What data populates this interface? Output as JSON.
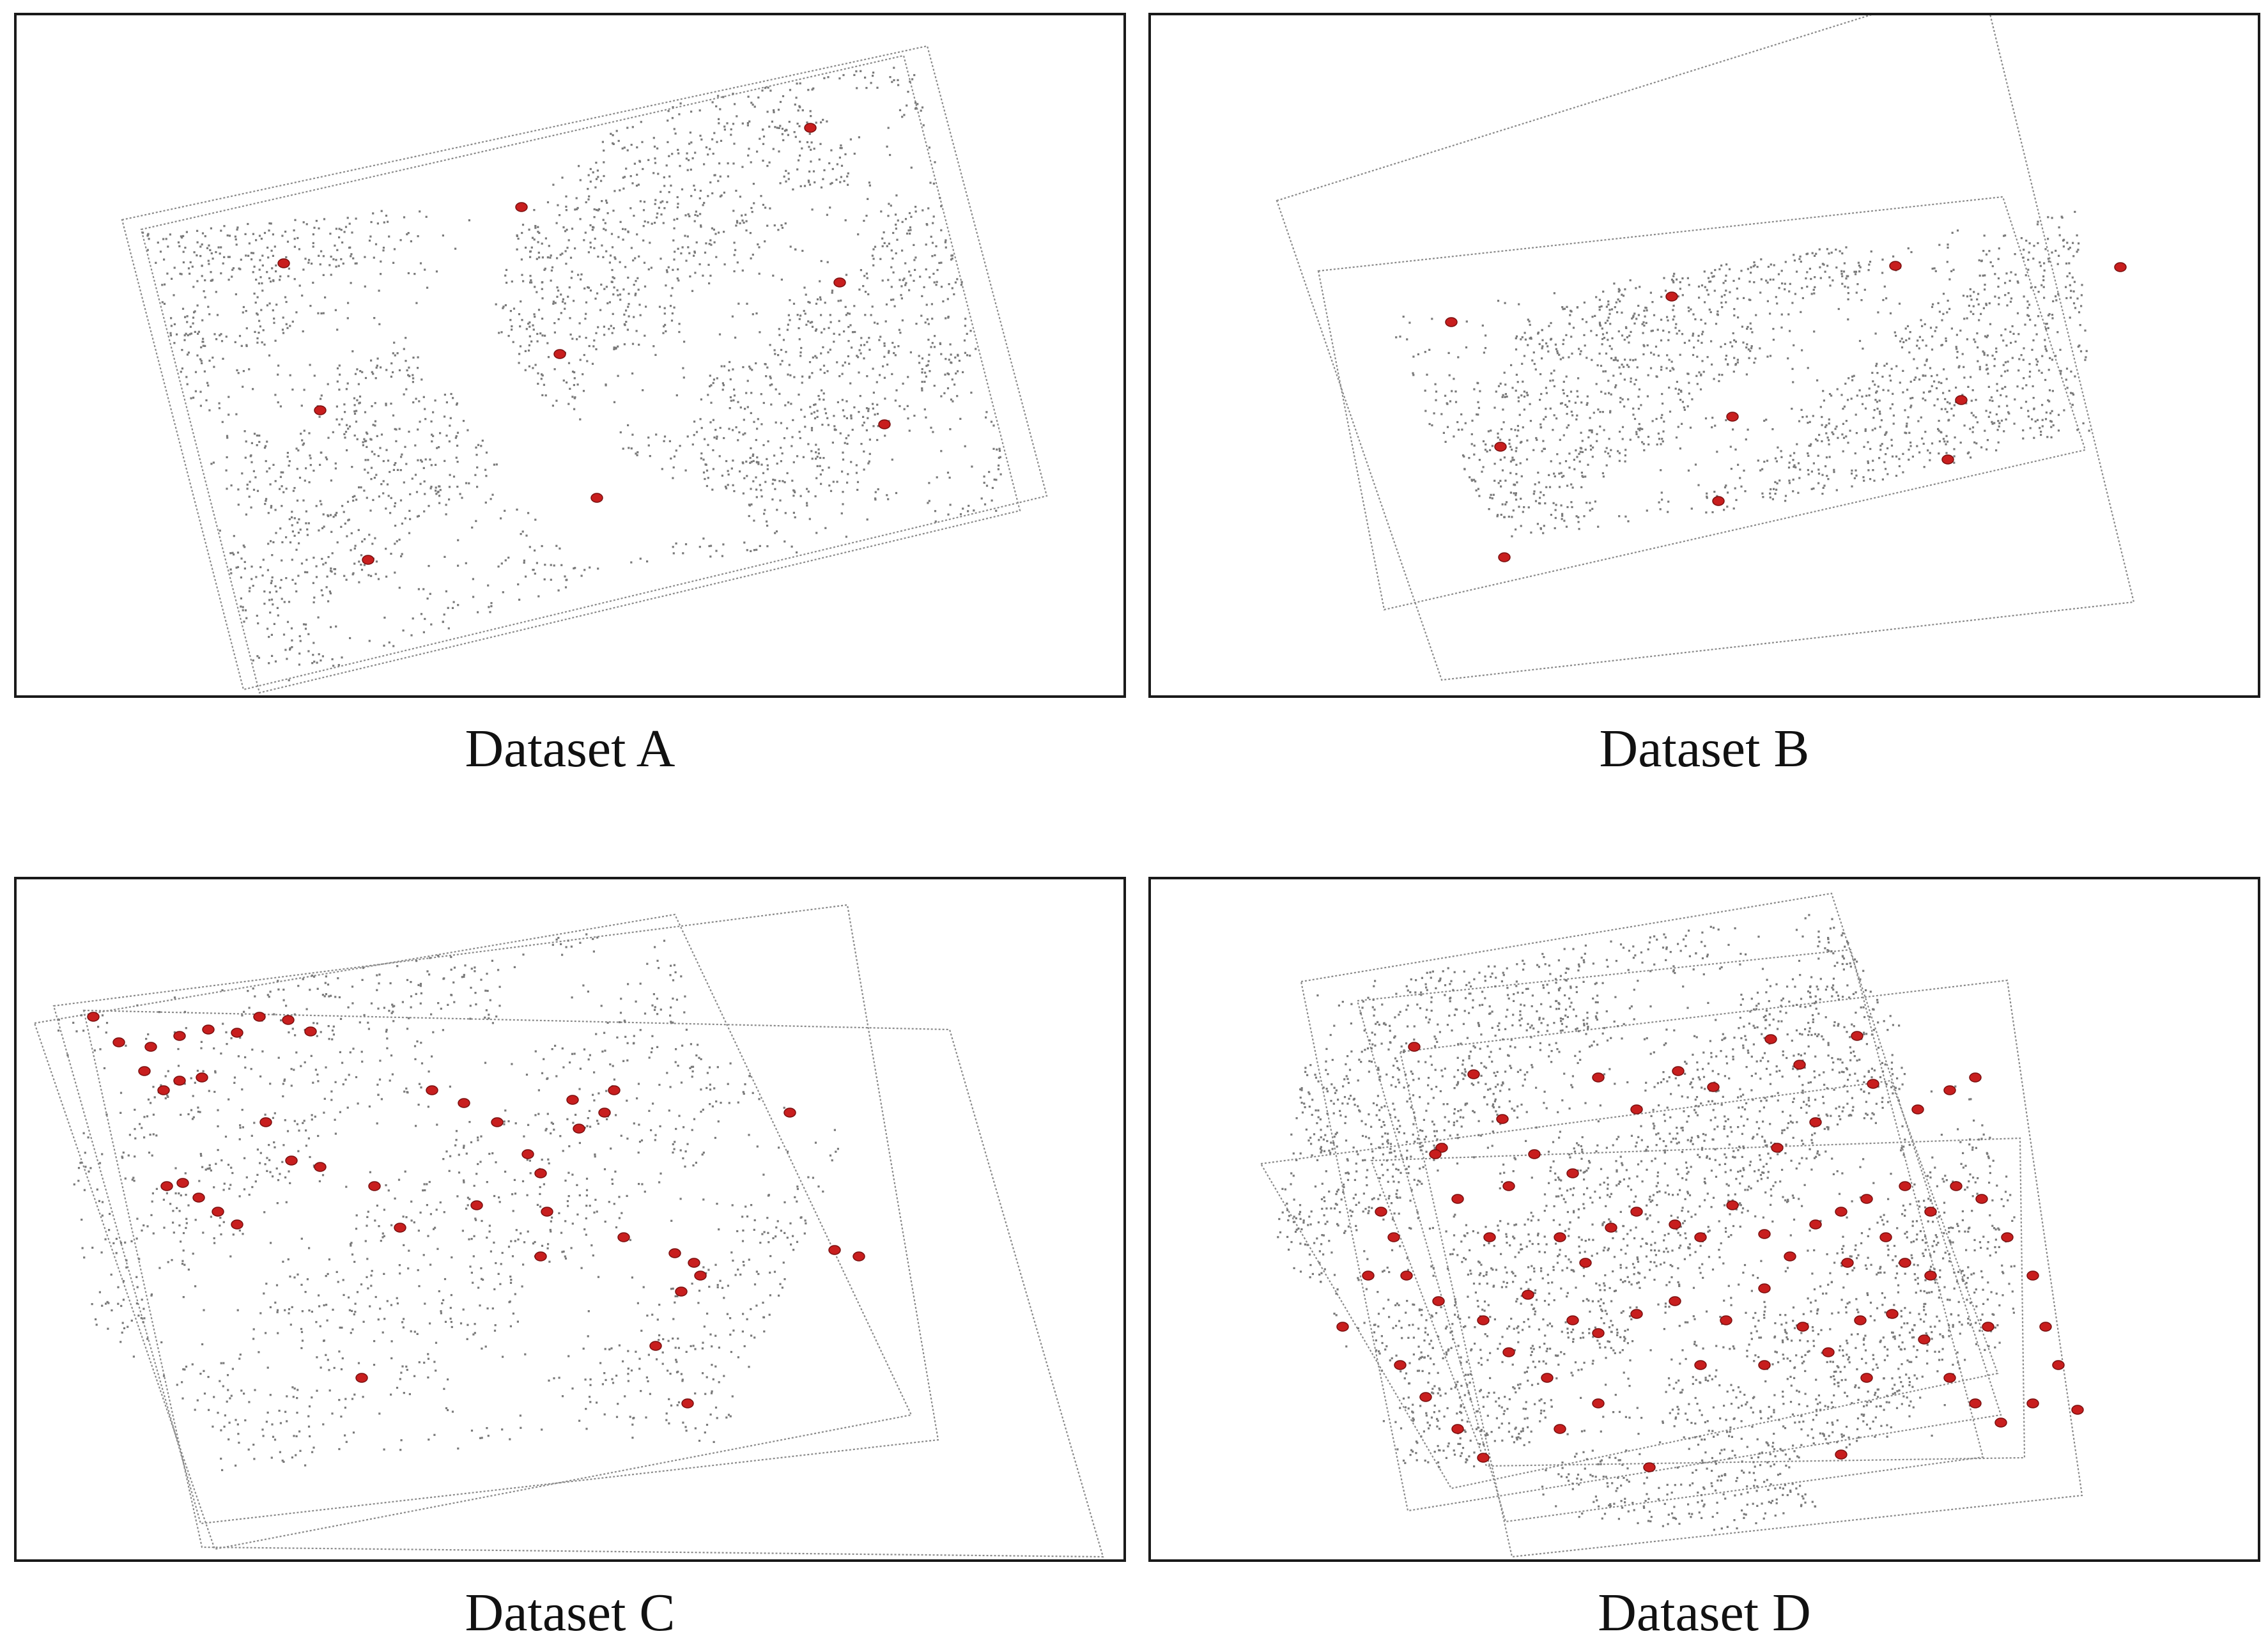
{
  "colors": {
    "frame": "#8a8a8a",
    "points": "#7a7a7a",
    "keypoints": "#c81e1e",
    "keypoint_stroke": "#7a0f0f",
    "border": "#1a1a1a"
  },
  "icons": {
    "point": "small-grey-dot",
    "keypoint": "red-ellipse-marker"
  },
  "panels": [
    {
      "caption": "Dataset A",
      "frames": [
        [
          [
            165,
            320
          ],
          [
            1425,
            48
          ],
          [
            1612,
            752
          ],
          [
            355,
            1055
          ]
        ],
        [
          [
            195,
            335
          ],
          [
            1388,
            63
          ],
          [
            1570,
            775
          ],
          [
            380,
            1060
          ]
        ]
      ],
      "cloud": [
        [
          [
            200,
            340
          ],
          [
            760,
            285
          ],
          [
            600,
            480
          ],
          [
            870,
            860
          ],
          [
            1210,
            840
          ],
          [
            1250,
            840
          ],
          [
            1060,
            810
          ],
          [
            900,
            880
          ],
          [
            380,
            1060
          ],
          [
            195,
            335
          ]
        ],
        [
          [
            950,
            150
          ],
          [
            1400,
            70
          ],
          [
            1560,
            770
          ],
          [
            1210,
            830
          ],
          [
            830,
            610
          ],
          [
            740,
            480
          ],
          [
            800,
            260
          ]
        ]
      ],
      "density": 2600,
      "keypoints": [
        [
          418,
          388
        ],
        [
          790,
          300
        ],
        [
          1242,
          176
        ],
        [
          1288,
          418
        ],
        [
          850,
          530
        ],
        [
          475,
          618
        ],
        [
          1358,
          640
        ],
        [
          908,
          755
        ],
        [
          550,
          852
        ]
      ]
    },
    {
      "caption": "Dataset B",
      "frames": [
        [
          [
            197,
            290
          ],
          [
            1300,
            -55
          ],
          [
            1538,
            918
          ],
          [
            455,
            1040
          ]
        ],
        [
          [
            262,
            400
          ],
          [
            1333,
            284
          ],
          [
            1462,
            680
          ],
          [
            365,
            930
          ]
        ]
      ],
      "cloud": [
        [
          [
            380,
            470
          ],
          [
            1450,
            300
          ],
          [
            1470,
            650
          ],
          [
            1000,
            760
          ],
          [
            560,
            820
          ],
          [
            380,
            560
          ]
        ],
        [
          [
            400,
            470
          ],
          [
            660,
            440
          ],
          [
            600,
            620
          ],
          [
            460,
            640
          ]
        ]
      ],
      "density": 1700,
      "keypoints": [
        [
          470,
          480
        ],
        [
          815,
          440
        ],
        [
          1165,
          392
        ],
        [
          1517,
          394
        ],
        [
          547,
          675
        ],
        [
          910,
          628
        ],
        [
          1268,
          602
        ],
        [
          1247,
          695
        ],
        [
          888,
          760
        ],
        [
          553,
          848
        ]
      ]
    },
    {
      "caption": "Dataset C",
      "frames": [
        [
          [
            28,
            225
          ],
          [
            1030,
            55
          ],
          [
            1400,
            838
          ],
          [
            310,
            1048
          ]
        ],
        [
          [
            58,
            198
          ],
          [
            1300,
            40
          ],
          [
            1442,
            877
          ],
          [
            288,
            1008
          ]
        ],
        [
          [
            105,
            205
          ],
          [
            1460,
            235
          ],
          [
            1700,
            1060
          ],
          [
            290,
            1045
          ]
        ]
      ],
      "cloud": [
        [
          [
            60,
            210
          ],
          [
            1020,
            62
          ],
          [
            1060,
            250
          ],
          [
            1300,
            400
          ],
          [
            1200,
            630
          ],
          [
            1100,
            880
          ],
          [
            820,
            880
          ],
          [
            450,
            860
          ],
          [
            270,
            830
          ],
          [
            110,
            700
          ]
        ],
        [
          [
            290,
            800
          ],
          [
            800,
            760
          ],
          [
            780,
            880
          ],
          [
            320,
            930
          ]
        ]
      ],
      "density": 1500,
      "keypoints": [
        [
          120,
          215
        ],
        [
          160,
          255
        ],
        [
          210,
          262
        ],
        [
          255,
          245
        ],
        [
          300,
          235
        ],
        [
          345,
          240
        ],
        [
          380,
          215
        ],
        [
          425,
          220
        ],
        [
          460,
          238
        ],
        [
          200,
          300
        ],
        [
          230,
          330
        ],
        [
          255,
          315
        ],
        [
          290,
          310
        ],
        [
          390,
          380
        ],
        [
          430,
          440
        ],
        [
          475,
          450
        ],
        [
          235,
          480
        ],
        [
          260,
          475
        ],
        [
          285,
          498
        ],
        [
          315,
          520
        ],
        [
          345,
          540
        ],
        [
          560,
          480
        ],
        [
          600,
          545
        ],
        [
          650,
          330
        ],
        [
          700,
          350
        ],
        [
          720,
          510
        ],
        [
          752,
          380
        ],
        [
          800,
          430
        ],
        [
          820,
          460
        ],
        [
          830,
          520
        ],
        [
          870,
          345
        ],
        [
          880,
          390
        ],
        [
          920,
          365
        ],
        [
          935,
          330
        ],
        [
          950,
          560
        ],
        [
          1030,
          585
        ],
        [
          1040,
          645
        ],
        [
          1060,
          600
        ],
        [
          1070,
          620
        ],
        [
          1050,
          820
        ],
        [
          1210,
          365
        ],
        [
          1280,
          580
        ],
        [
          1318,
          590
        ],
        [
          540,
          780
        ],
        [
          1000,
          730
        ],
        [
          820,
          590
        ]
      ]
    },
    {
      "caption": "Dataset D",
      "frames": [
        [
          [
            235,
            160
          ],
          [
            1065,
            22
          ],
          [
            1330,
            838
          ],
          [
            402,
            988
          ]
        ],
        [
          [
            323,
            190
          ],
          [
            1095,
            110
          ],
          [
            1302,
            904
          ],
          [
            555,
            1005
          ]
        ],
        [
          [
            390,
            270
          ],
          [
            1340,
            158
          ],
          [
            1457,
            964
          ],
          [
            565,
            1060
          ]
        ],
        [
          [
            172,
            445
          ],
          [
            1158,
            315
          ],
          [
            1325,
            773
          ],
          [
            470,
            953
          ]
        ],
        [
          [
            345,
            440
          ],
          [
            1360,
            405
          ],
          [
            1367,
            905
          ],
          [
            525,
            918
          ]
        ]
      ],
      "cloud": [
        [
          [
            260,
            170
          ],
          [
            1060,
            40
          ],
          [
            1200,
            280
          ],
          [
            1300,
            350
          ],
          [
            1350,
            500
          ],
          [
            1350,
            700
          ],
          [
            1200,
            900
          ],
          [
            1000,
            880
          ],
          [
            600,
            920
          ],
          [
            400,
            920
          ],
          [
            190,
            550
          ]
        ],
        [
          [
            560,
            880
          ],
          [
            1020,
            880
          ],
          [
            1040,
            980
          ],
          [
            900,
            1020
          ],
          [
            620,
            1000
          ]
        ]
      ],
      "density": 3600,
      "keypoints": [
        [
          412,
          262
        ],
        [
          505,
          305
        ],
        [
          455,
          420
        ],
        [
          550,
          375
        ],
        [
          700,
          310
        ],
        [
          760,
          360
        ],
        [
          825,
          300
        ],
        [
          880,
          325
        ],
        [
          970,
          250
        ],
        [
          1015,
          290
        ],
        [
          1105,
          245
        ],
        [
          1130,
          320
        ],
        [
          1200,
          360
        ],
        [
          1250,
          330
        ],
        [
          1290,
          310
        ],
        [
          445,
          430
        ],
        [
          480,
          500
        ],
        [
          530,
          560
        ],
        [
          380,
          560
        ],
        [
          400,
          620
        ],
        [
          450,
          660
        ],
        [
          520,
          690
        ],
        [
          590,
          650
        ],
        [
          640,
          560
        ],
        [
          680,
          600
        ],
        [
          720,
          545
        ],
        [
          760,
          520
        ],
        [
          820,
          540
        ],
        [
          860,
          560
        ],
        [
          910,
          510
        ],
        [
          960,
          555
        ],
        [
          1000,
          590
        ],
        [
          1040,
          540
        ],
        [
          1080,
          520
        ],
        [
          1120,
          500
        ],
        [
          1150,
          560
        ],
        [
          1180,
          600
        ],
        [
          1220,
          520
        ],
        [
          1260,
          480
        ],
        [
          1300,
          500
        ],
        [
          1340,
          560
        ],
        [
          1380,
          620
        ],
        [
          1400,
          700
        ],
        [
          1420,
          760
        ],
        [
          1450,
          830
        ],
        [
          390,
          760
        ],
        [
          430,
          810
        ],
        [
          480,
          860
        ],
        [
          520,
          905
        ],
        [
          560,
          740
        ],
        [
          620,
          780
        ],
        [
          660,
          690
        ],
        [
          700,
          710
        ],
        [
          760,
          680
        ],
        [
          820,
          660
        ],
        [
          860,
          760
        ],
        [
          900,
          690
        ],
        [
          960,
          640
        ],
        [
          1020,
          700
        ],
        [
          1060,
          740
        ],
        [
          1110,
          690
        ],
        [
          1160,
          680
        ],
        [
          1210,
          720
        ],
        [
          1250,
          780
        ],
        [
          1290,
          820
        ],
        [
          1330,
          850
        ],
        [
          780,
          920
        ],
        [
          1080,
          900
        ],
        [
          1380,
          820
        ],
        [
          300,
          700
        ],
        [
          340,
          620
        ],
        [
          360,
          520
        ],
        [
          560,
          480
        ],
        [
          600,
          430
        ],
        [
          660,
          460
        ],
        [
          980,
          420
        ],
        [
          1040,
          380
        ],
        [
          1090,
          600
        ],
        [
          1180,
          480
        ],
        [
          1310,
          700
        ],
        [
          700,
          820
        ],
        [
          960,
          760
        ],
        [
          1220,
          620
        ],
        [
          640,
          860
        ],
        [
          1120,
          780
        ]
      ]
    }
  ]
}
